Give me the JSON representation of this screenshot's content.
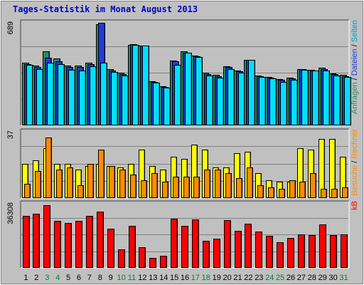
{
  "chart_data": {
    "type": "bar",
    "title": "Tages-Statistik im Monat August 2013",
    "categories": [
      "1",
      "2",
      "3",
      "4",
      "5",
      "6",
      "7",
      "8",
      "9",
      "10",
      "11",
      "12",
      "13",
      "14",
      "15",
      "16",
      "17",
      "18",
      "19",
      "20",
      "21",
      "22",
      "23",
      "24",
      "25",
      "26",
      "27",
      "28",
      "29",
      "30",
      "31"
    ],
    "weekend_days": [
      "3",
      "4",
      "10",
      "11",
      "17",
      "18",
      "24",
      "25",
      "31"
    ],
    "panels": [
      {
        "id": "top",
        "ymax_label": "689",
        "ymax": 689,
        "series": [
          {
            "name": "Anfragen",
            "color": "#2e8b57",
            "values": [
              420,
              400,
              498,
              448,
              400,
              400,
              422,
              678,
              380,
              356,
              541,
              537,
              299,
              265,
              435,
              496,
              470,
              352,
              340,
              395,
              368,
              438,
              335,
              324,
              310,
              320,
              380,
              374,
              388,
              350,
              342
            ]
          },
          {
            "name": "Dateien",
            "color": "#1e3cdc",
            "values": [
              412,
              390,
              454,
              432,
              390,
              391,
              412,
              689,
              370,
              346,
              545,
              537,
              294,
              260,
              430,
              490,
              466,
              344,
              332,
              390,
              362,
              438,
              330,
              320,
              304,
              314,
              376,
              370,
              380,
              343,
              332
            ]
          },
          {
            "name": "Seiten",
            "color": "#00e0ff",
            "values": [
              408,
              378,
              420,
              410,
              375,
              370,
              395,
              420,
              360,
              335,
              541,
              535,
              285,
              255,
              406,
              486,
              458,
              335,
              320,
              380,
              356,
              438,
              324,
              316,
              292,
              305,
              372,
              368,
              370,
              336,
              326
            ]
          }
        ]
      },
      {
        "id": "middle",
        "ymax_label": "37",
        "ymax": 37,
        "series": [
          {
            "name": "Besuche",
            "color": "#ffff00",
            "values": [
              19,
              21,
              28,
              19,
              19,
              16,
              18,
              19,
              18,
              17,
              19,
              27,
              18,
              16,
              23,
              22,
              30,
              27,
              17,
              17,
              25,
              26,
              14,
              10,
              9,
              9,
              28,
              27,
              33,
              33,
              23
            ]
          },
          {
            "name": "Rechner",
            "color": "#ff8c00",
            "values": [
              8,
              15,
              34,
              16,
              17,
              7,
              19,
              27,
              18,
              16,
              13,
              10,
              14,
              9,
              12,
              12,
              12,
              16,
              16,
              14,
              11,
              17,
              7,
              6,
              5,
              10,
              9,
              14,
              5,
              5,
              6
            ]
          }
        ]
      },
      {
        "id": "bottom",
        "ymax_label": "36308",
        "ymax": 36308,
        "series": [
          {
            "name": "kB",
            "color": "#ff0000",
            "values": [
              29500,
              30500,
              35500,
              26500,
              25500,
              26500,
              29500,
              32000,
              22000,
              10500,
              24000,
              11800,
              5500,
              7000,
              28000,
              24000,
              27500,
              15500,
              16500,
              27000,
              21000,
              25000,
              20500,
              18000,
              14500,
              17000,
              19000,
              18500,
              24500,
              18500,
              19000
            ]
          }
        ]
      }
    ],
    "right_legend": [
      {
        "parts": [
          {
            "text": "Anfragen",
            "color": "#2e8b57"
          },
          {
            "text": " / ",
            "color": "#000000"
          },
          {
            "text": "Dateien",
            "color": "#1e3cdc"
          },
          {
            "text": " / ",
            "color": "#000000"
          },
          {
            "text": "Seiten",
            "color": "#00a0c8"
          }
        ]
      },
      {
        "parts": [
          {
            "text": "Besuche",
            "color": "#ff8c00"
          },
          {
            "text": " / ",
            "color": "#000000"
          },
          {
            "text": "Rechner",
            "color": "#ff8c00"
          }
        ]
      },
      {
        "parts": [
          {
            "text": "kB",
            "color": "#ff0000"
          }
        ]
      }
    ],
    "grid": true,
    "colors": {
      "panel_bg": "#c0c0c0",
      "frame_bg": "#c0c0c0",
      "grid": "#808080",
      "title": "#0000c8",
      "weekday_label": "#000000",
      "weekend_label": "#008040"
    }
  }
}
